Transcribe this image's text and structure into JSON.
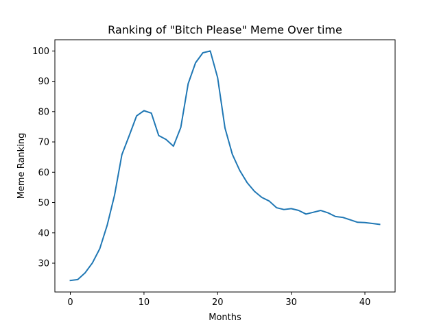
{
  "chart_data": {
    "type": "line",
    "title": "Ranking of \"Bitch Please\" Meme Over time",
    "xlabel": "Months",
    "ylabel": "Meme Ranking",
    "xlim": [
      -2.1,
      44.1
    ],
    "ylim": [
      20.5,
      103.7
    ],
    "xticks": [
      0,
      10,
      20,
      30,
      40
    ],
    "yticks": [
      30,
      40,
      50,
      60,
      70,
      80,
      90,
      100
    ],
    "grid": false,
    "series": [
      {
        "color": "#1f77b4",
        "x": [
          0,
          1,
          2,
          3,
          4,
          5,
          6,
          7,
          8,
          9,
          10,
          11,
          12,
          13,
          14,
          15,
          16,
          17,
          18,
          19,
          20,
          21,
          22,
          23,
          24,
          25,
          26,
          27,
          28,
          29,
          30,
          31,
          32,
          33,
          34,
          35,
          36,
          37,
          38,
          39,
          40,
          41,
          42
        ],
        "values": [
          24.3,
          24.6,
          26.8,
          30.1,
          34.8,
          42.5,
          52.4,
          65.8,
          72.1,
          78.6,
          80.3,
          79.5,
          72.1,
          70.8,
          68.6,
          74.8,
          89.2,
          96.1,
          99.4,
          100.0,
          91.2,
          74.6,
          65.9,
          60.6,
          56.6,
          53.7,
          51.7,
          50.5,
          48.3,
          47.7,
          48.0,
          47.4,
          46.2,
          46.8,
          47.4,
          46.6,
          45.4,
          45.1,
          44.3,
          43.5,
          43.4,
          43.1,
          42.8
        ]
      }
    ]
  }
}
